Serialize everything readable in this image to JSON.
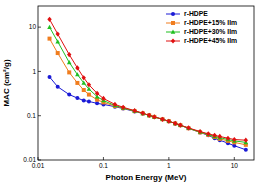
{
  "chart_data": {
    "type": "line",
    "x_label": "Photon Energy (MeV)",
    "y_label": "MAC (cm²/g)",
    "log": true,
    "grid": false,
    "legend": "top-right",
    "xlim": [
      0.01,
      20
    ],
    "ylim": [
      0.01,
      30
    ],
    "xticks": [
      0.01,
      0.1,
      1,
      10
    ],
    "yticks": [
      0.01,
      0.1,
      1,
      10
    ],
    "x": [
      0.015,
      0.02,
      0.03,
      0.04,
      0.05,
      0.06,
      0.08,
      0.1,
      0.15,
      0.2,
      0.3,
      0.4,
      0.5,
      0.6,
      0.8,
      1,
      1.25,
      1.5,
      2,
      3,
      4,
      5,
      6,
      8,
      10,
      15
    ],
    "series": [
      {
        "name": "r-HDPE",
        "color": "#1a1ad6",
        "marker": "circle",
        "values": [
          0.75,
          0.45,
          0.3,
          0.25,
          0.22,
          0.21,
          0.19,
          0.18,
          0.16,
          0.145,
          0.125,
          0.112,
          0.102,
          0.094,
          0.083,
          0.075,
          0.067,
          0.061,
          0.052,
          0.042,
          0.036,
          0.031,
          0.028,
          0.024,
          0.021,
          0.017
        ]
      },
      {
        "name": "r-HDPE+15% Ilm",
        "color": "#f07d1e",
        "marker": "square",
        "values": [
          5.5,
          2.6,
          0.95,
          0.55,
          0.38,
          0.3,
          0.23,
          0.2,
          0.165,
          0.148,
          0.127,
          0.113,
          0.102,
          0.094,
          0.083,
          0.075,
          0.067,
          0.061,
          0.052,
          0.042,
          0.037,
          0.033,
          0.03,
          0.027,
          0.025,
          0.022
        ]
      },
      {
        "name": "r-HDPE+30% Ilm",
        "color": "#1fbf1f",
        "marker": "triangle",
        "values": [
          10,
          4.7,
          1.6,
          0.85,
          0.55,
          0.4,
          0.27,
          0.22,
          0.17,
          0.15,
          0.128,
          0.113,
          0.102,
          0.094,
          0.083,
          0.075,
          0.067,
          0.061,
          0.052,
          0.043,
          0.038,
          0.034,
          0.032,
          0.029,
          0.027,
          0.025
        ]
      },
      {
        "name": "r-HDPE+45% Ilm",
        "color": "#e01010",
        "marker": "diamond",
        "values": [
          15,
          7,
          2.4,
          1.2,
          0.72,
          0.5,
          0.32,
          0.245,
          0.18,
          0.155,
          0.13,
          0.114,
          0.102,
          0.094,
          0.083,
          0.075,
          0.067,
          0.061,
          0.053,
          0.044,
          0.039,
          0.036,
          0.034,
          0.031,
          0.029,
          0.028
        ]
      }
    ]
  }
}
